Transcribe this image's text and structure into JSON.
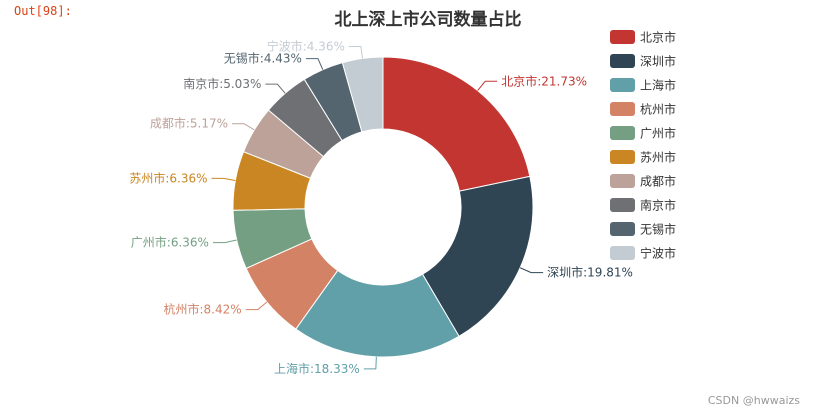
{
  "notebook": {
    "out_prompt": "Out[98]:"
  },
  "watermark": "CSDN @hwwaizs",
  "chart_data": {
    "type": "pie",
    "variant": "donut",
    "title": "北上深上市公司数量占比",
    "legend_placement": "right",
    "slices": [
      {
        "name": "北京市",
        "value": 21.73,
        "label": "北京市:21.73%",
        "color": "#c23531"
      },
      {
        "name": "深圳市",
        "value": 19.81,
        "label": "深圳市:19.81%",
        "color": "#2f4554"
      },
      {
        "name": "上海市",
        "value": 18.33,
        "label": "上海市:18.33%",
        "color": "#61a0a8"
      },
      {
        "name": "杭州市",
        "value": 8.42,
        "label": "杭州市:8.42%",
        "color": "#d48265"
      },
      {
        "name": "广州市",
        "value": 6.36,
        "label": "广州市:6.36%",
        "color": "#749f83"
      },
      {
        "name": "苏州市",
        "value": 6.36,
        "label": "苏州市:6.36%",
        "color": "#ca8622"
      },
      {
        "name": "成都市",
        "value": 5.17,
        "label": "成都市:5.17%",
        "color": "#bda29a"
      },
      {
        "name": "南京市",
        "value": 5.03,
        "label": "南京市:5.03%",
        "color": "#6e7074"
      },
      {
        "name": "无锡市",
        "value": 4.43,
        "label": "无锡市:4.43%",
        "color": "#546570"
      },
      {
        "name": "宁波市",
        "value": 4.36,
        "label": "宁波市:4.36%",
        "color": "#c4ccd3"
      }
    ]
  }
}
